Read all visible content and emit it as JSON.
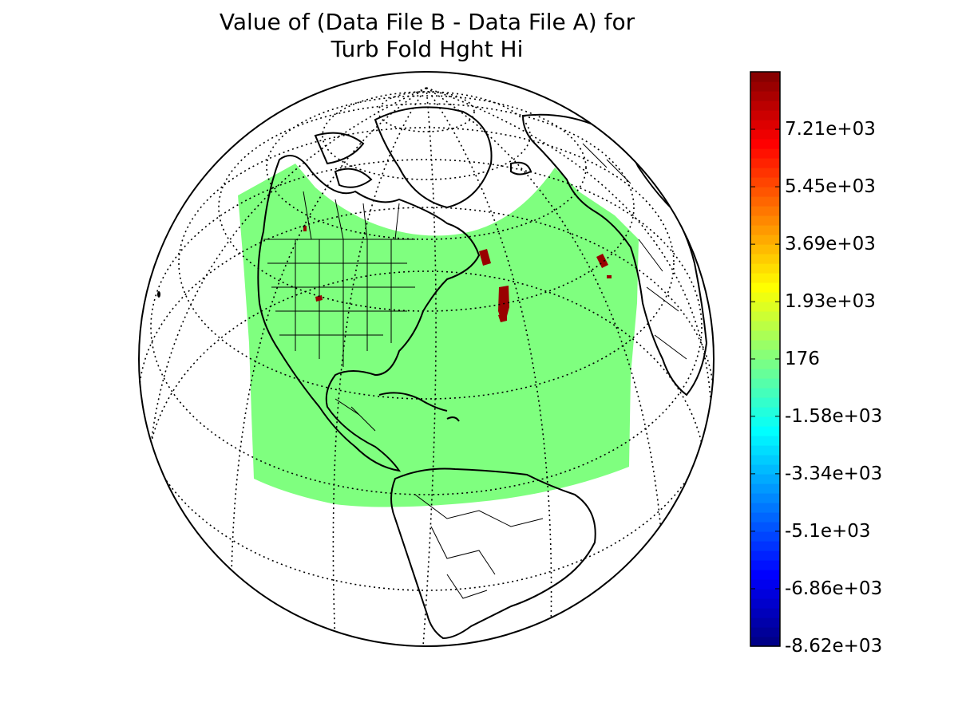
{
  "title": {
    "line1": "Value of (Data File B - Data File A) for",
    "line2": "Turb Fold Hght Hi"
  },
  "colorbar": {
    "colormap": "jet",
    "min": -8620,
    "max": 8970,
    "ticks": [
      {
        "value": 7210,
        "label": "7.21e+03"
      },
      {
        "value": 5450,
        "label": "5.45e+03"
      },
      {
        "value": 3690,
        "label": "3.69e+03"
      },
      {
        "value": 1930,
        "label": "1.93e+03"
      },
      {
        "value": 176,
        "label": "176"
      },
      {
        "value": -1580,
        "label": "-1.58e+03"
      },
      {
        "value": -3340,
        "label": "-3.34e+03"
      },
      {
        "value": -5100,
        "label": "-5.1e+03"
      },
      {
        "value": -6860,
        "label": "-6.86e+03"
      },
      {
        "value": -8620,
        "label": "-8.62e+03"
      }
    ]
  },
  "map": {
    "projection": "orthographic",
    "center_lon": -60,
    "center_lat": 30,
    "graticule": "dotted",
    "field_color": "#7fff7f",
    "anomaly_color": "#990000"
  }
}
